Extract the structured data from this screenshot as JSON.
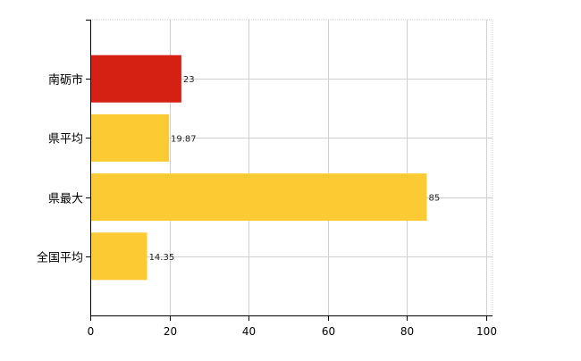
{
  "chart_data": {
    "type": "bar",
    "orientation": "horizontal",
    "categories": [
      "南砺市",
      "県平均",
      "県最大",
      "全国平均"
    ],
    "values": [
      23,
      19.87,
      85,
      14.35
    ],
    "value_labels": [
      "23",
      "19.87",
      "85",
      "14.35"
    ],
    "bar_colors": [
      "#d42114",
      "#fccb33",
      "#fccb33",
      "#fccb33"
    ],
    "xlim": [
      0,
      100
    ],
    "x_ticks": [
      0,
      20,
      40,
      60,
      80,
      100
    ],
    "x_tick_labels": [
      "0",
      "20",
      "40",
      "60",
      "80",
      "100"
    ],
    "grid": true,
    "grid_color": "#d0d0d0",
    "axis_color": "#000000"
  }
}
